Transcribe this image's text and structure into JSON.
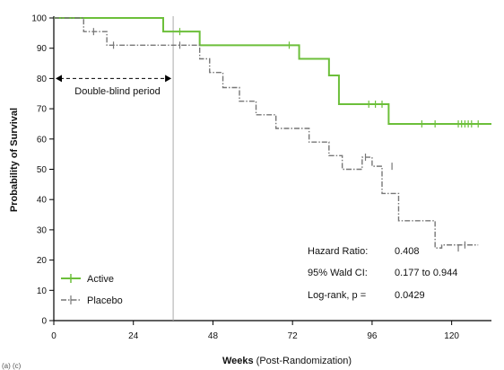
{
  "chart_data": {
    "type": "line",
    "xlabel_bold": "Weeks",
    "xlabel_rest": " (Post-Randomization)",
    "ylabel": "Probability of Survival",
    "xlim": [
      0,
      132
    ],
    "ylim": [
      0,
      100
    ],
    "x_ticks": [
      0,
      24,
      48,
      72,
      96,
      120
    ],
    "y_ticks": [
      0,
      10,
      20,
      30,
      40,
      50,
      60,
      70,
      80,
      90,
      100
    ],
    "grid": false,
    "legend_position": "bottom-left",
    "vertical_reference_line_x": 36,
    "period_annotation": {
      "text": "Double-blind period",
      "x_start": 0,
      "x_end": 36,
      "y": 80
    },
    "stats": [
      {
        "label": "Hazard Ratio:",
        "value": "0.408"
      },
      {
        "label": "95% Wald CI:",
        "value": "0.177 to 0.944"
      },
      {
        "label": "Log-rank, p =",
        "value": "0.0429"
      }
    ],
    "footer_text": "(a) (c)",
    "series": [
      {
        "name": "Active",
        "color": "#6cbf3a",
        "dash": "solid",
        "x": [
          0,
          33,
          33,
          44,
          44,
          74,
          74,
          83,
          83,
          86,
          86,
          101,
          101,
          132
        ],
        "y": [
          100,
          100,
          95.5,
          95.5,
          91,
          91,
          86.5,
          86.5,
          81,
          81,
          71.5,
          71.5,
          65,
          65
        ],
        "censor_x": [
          38,
          71,
          95,
          97,
          99,
          111,
          115,
          122,
          123,
          124,
          125,
          126,
          128
        ],
        "censor_y": [
          95.5,
          91,
          71.5,
          71.5,
          71.5,
          65,
          65,
          65,
          65,
          65,
          65,
          65,
          65
        ]
      },
      {
        "name": "Placebo",
        "color": "#777777",
        "dash": "dashdot",
        "x": [
          0,
          9,
          9,
          16,
          16,
          44,
          44,
          47,
          47,
          51,
          51,
          56,
          56,
          61,
          61,
          67,
          67,
          77,
          77,
          83,
          83,
          87,
          87,
          93,
          93,
          96,
          96,
          99,
          99,
          104,
          104,
          115,
          115,
          117,
          117,
          128
        ],
        "y": [
          100,
          100,
          95.5,
          95.5,
          91,
          91,
          86.5,
          86.5,
          82,
          82,
          77,
          77,
          72.5,
          72.5,
          68,
          68,
          63.5,
          63.5,
          59,
          59,
          54.5,
          54.5,
          50,
          50,
          54,
          54,
          51,
          51,
          42,
          42,
          33,
          33,
          24,
          24,
          25,
          25
        ],
        "censor_x": [
          12,
          18,
          38,
          94,
          102,
          122,
          124
        ],
        "censor_y": [
          95.5,
          91,
          91,
          54,
          51,
          24,
          25
        ]
      }
    ]
  }
}
